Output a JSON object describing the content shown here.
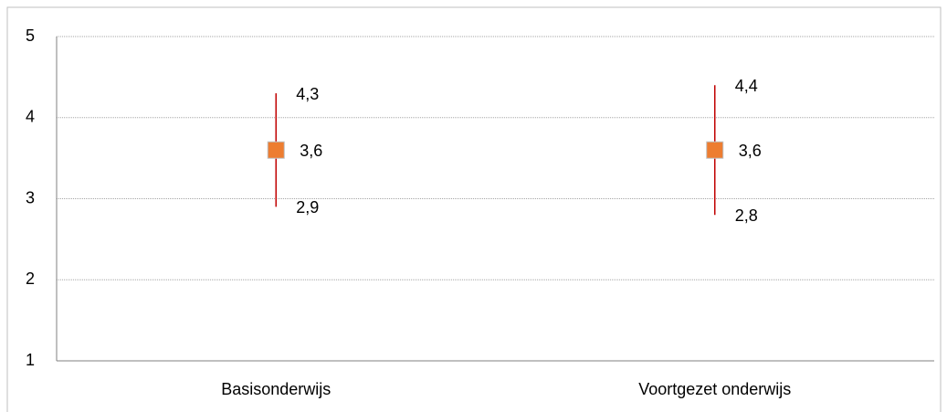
{
  "chart_data": {
    "type": "errorbar",
    "categories": [
      "Basisonderwijs",
      "Voortgezet onderwijs"
    ],
    "values": [
      3.6,
      3.6
    ],
    "value_labels": [
      "3,6",
      "3,6"
    ],
    "high": [
      4.3,
      4.4
    ],
    "high_labels": [
      "4,3",
      "4,4"
    ],
    "low": [
      2.9,
      2.8
    ],
    "low_labels": [
      "2,9",
      "2,8"
    ],
    "color": "#ed7d31",
    "bar_color": "#c00000",
    "ylim": [
      1,
      5
    ],
    "yticks": [
      1,
      2,
      3,
      4,
      5
    ],
    "grid": true
  }
}
